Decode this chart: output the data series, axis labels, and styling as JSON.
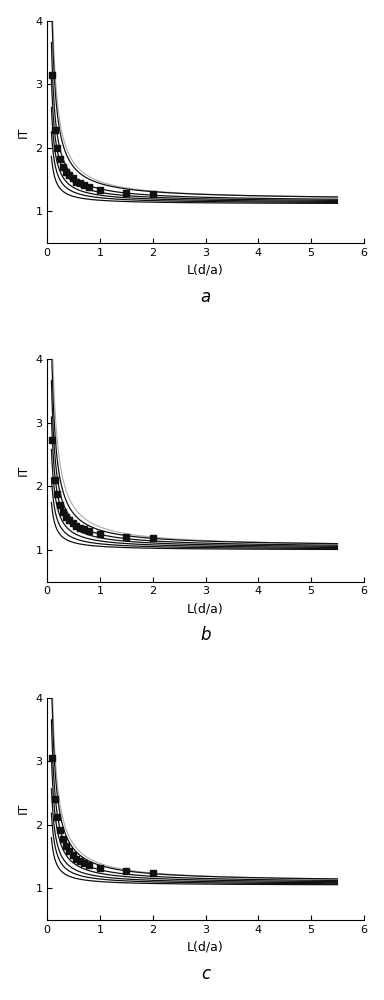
{
  "subplots": [
    {
      "label": "a",
      "ylim": [
        0.5,
        4.0
      ],
      "xlim": [
        0,
        6
      ],
      "yticks": [
        1,
        2,
        3,
        4
      ],
      "xticks": [
        0,
        1,
        2,
        3,
        4,
        5,
        6
      ],
      "series": [
        {
          "a": 0.26,
          "b": 1.18,
          "x_start": 0.08,
          "x_end": 5.5,
          "scatter_xs": [
            0.09,
            0.14,
            0.19,
            0.25,
            0.3,
            0.36,
            0.42,
            0.48,
            0.55,
            0.62,
            0.7,
            0.8,
            1.0,
            1.5,
            2.0
          ],
          "scatter_ys": [
            3.15,
            2.28,
            2.0,
            1.82,
            1.7,
            1.62,
            1.57,
            1.52,
            1.47,
            1.44,
            1.41,
            1.38,
            1.34,
            1.29,
            1.27
          ]
        },
        {
          "a": 0.2,
          "b": 1.155,
          "x_start": 0.08,
          "x_end": 5.5
        },
        {
          "a": 0.155,
          "b": 1.145,
          "x_start": 0.08,
          "x_end": 5.5
        },
        {
          "a": 0.12,
          "b": 1.135,
          "x_start": 0.08,
          "x_end": 5.5
        },
        {
          "a": 0.09,
          "b": 1.125,
          "x_start": 0.08,
          "x_end": 5.5
        },
        {
          "a": 0.06,
          "b": 1.115,
          "x_start": 0.08,
          "x_end": 5.5
        }
      ],
      "curve": {
        "a": 0.3,
        "b": 1.17,
        "x_start": 0.04,
        "x_end": 5.5
      }
    },
    {
      "label": "b",
      "ylim": [
        0.5,
        4.0
      ],
      "xlim": [
        0,
        6
      ],
      "yticks": [
        1,
        2,
        3,
        4
      ],
      "xticks": [
        0,
        1,
        2,
        3,
        4,
        5,
        6
      ],
      "series": [
        {
          "a": 0.26,
          "b": 1.05,
          "x_start": 0.08,
          "x_end": 5.5,
          "scatter_xs": [
            0.09,
            0.14,
            0.19,
            0.25,
            0.3,
            0.36,
            0.42,
            0.48,
            0.55,
            0.62,
            0.7,
            0.8,
            1.0,
            1.5,
            2.0
          ],
          "scatter_ys": [
            2.72,
            2.1,
            1.88,
            1.7,
            1.6,
            1.52,
            1.47,
            1.42,
            1.38,
            1.35,
            1.32,
            1.29,
            1.25,
            1.2,
            1.18
          ]
        },
        {
          "a": 0.21,
          "b": 1.035,
          "x_start": 0.08,
          "x_end": 5.5
        },
        {
          "a": 0.165,
          "b": 1.025,
          "x_start": 0.08,
          "x_end": 5.5
        },
        {
          "a": 0.125,
          "b": 1.015,
          "x_start": 0.08,
          "x_end": 5.5
        },
        {
          "a": 0.09,
          "b": 1.005,
          "x_start": 0.08,
          "x_end": 5.5
        },
        {
          "a": 0.06,
          "b": 0.995,
          "x_start": 0.08,
          "x_end": 5.5
        }
      ],
      "curve": {
        "a": 0.32,
        "b": 1.04,
        "x_start": 0.04,
        "x_end": 5.5
      }
    },
    {
      "label": "c",
      "ylim": [
        0.5,
        4.0
      ],
      "xlim": [
        0,
        6
      ],
      "yticks": [
        1,
        2,
        3,
        4
      ],
      "xticks": [
        0,
        1,
        2,
        3,
        4,
        5,
        6
      ],
      "series": [
        {
          "a": 0.26,
          "b": 1.1,
          "x_start": 0.08,
          "x_end": 5.5,
          "scatter_xs": [
            0.09,
            0.14,
            0.19,
            0.25,
            0.3,
            0.36,
            0.42,
            0.48,
            0.55,
            0.62,
            0.7,
            0.8,
            1.0,
            1.5,
            2.0
          ],
          "scatter_ys": [
            3.05,
            2.4,
            2.12,
            1.92,
            1.78,
            1.66,
            1.58,
            1.52,
            1.46,
            1.43,
            1.4,
            1.36,
            1.32,
            1.27,
            1.24
          ]
        },
        {
          "a": 0.205,
          "b": 1.085,
          "x_start": 0.08,
          "x_end": 5.5
        },
        {
          "a": 0.16,
          "b": 1.075,
          "x_start": 0.08,
          "x_end": 5.5
        },
        {
          "a": 0.12,
          "b": 1.065,
          "x_start": 0.08,
          "x_end": 5.5
        },
        {
          "a": 0.09,
          "b": 1.055,
          "x_start": 0.08,
          "x_end": 5.5
        },
        {
          "a": 0.06,
          "b": 1.045,
          "x_start": 0.08,
          "x_end": 5.5
        }
      ],
      "curve": {
        "a": 0.3,
        "b": 1.09,
        "x_start": 0.04,
        "x_end": 5.5
      }
    }
  ],
  "scatter_color": "#111111",
  "line_color": "#111111",
  "curve_color": "#aaaaaa",
  "scatter_size": 14,
  "line_width": 0.9,
  "curve_lw": 0.8,
  "xlabel": "L(d/a)",
  "ylabel": "IT",
  "xlabel_fontsize": 9,
  "ylabel_fontsize": 9,
  "tick_fontsize": 8,
  "label_fontsize": 12
}
